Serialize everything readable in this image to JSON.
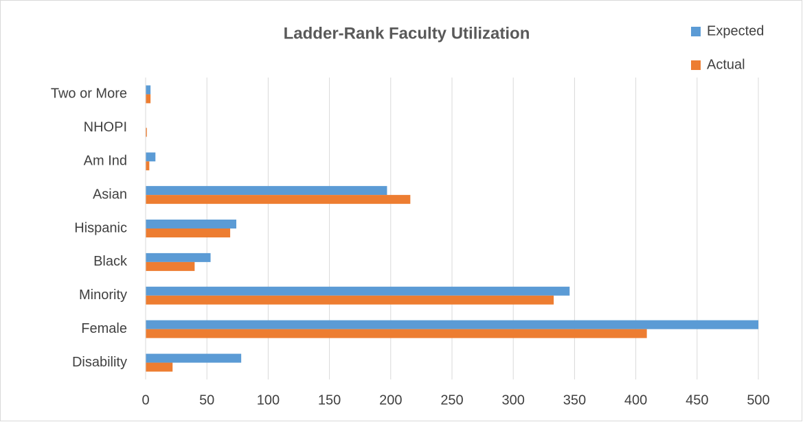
{
  "chart_data": {
    "type": "hbar",
    "title": "Ladder-Rank Faculty Utilization",
    "categories": [
      "Two or More",
      "NHOPI",
      "Am Ind",
      "Asian",
      "Hispanic",
      "Black",
      "Minority",
      "Female",
      "Disability"
    ],
    "series": [
      {
        "name": "Expected",
        "color": "#5b9bd5",
        "values": [
          4,
          0,
          8,
          197,
          74,
          53,
          346,
          500,
          78
        ]
      },
      {
        "name": "Actual",
        "color": "#ed7d31",
        "values": [
          4,
          1,
          3,
          216,
          69,
          40,
          333,
          409,
          22
        ]
      }
    ],
    "xlim": [
      0,
      500
    ],
    "xticks": [
      0,
      50,
      100,
      150,
      200,
      250,
      300,
      350,
      400,
      450,
      500
    ],
    "grid": true,
    "legend": "top-right"
  }
}
